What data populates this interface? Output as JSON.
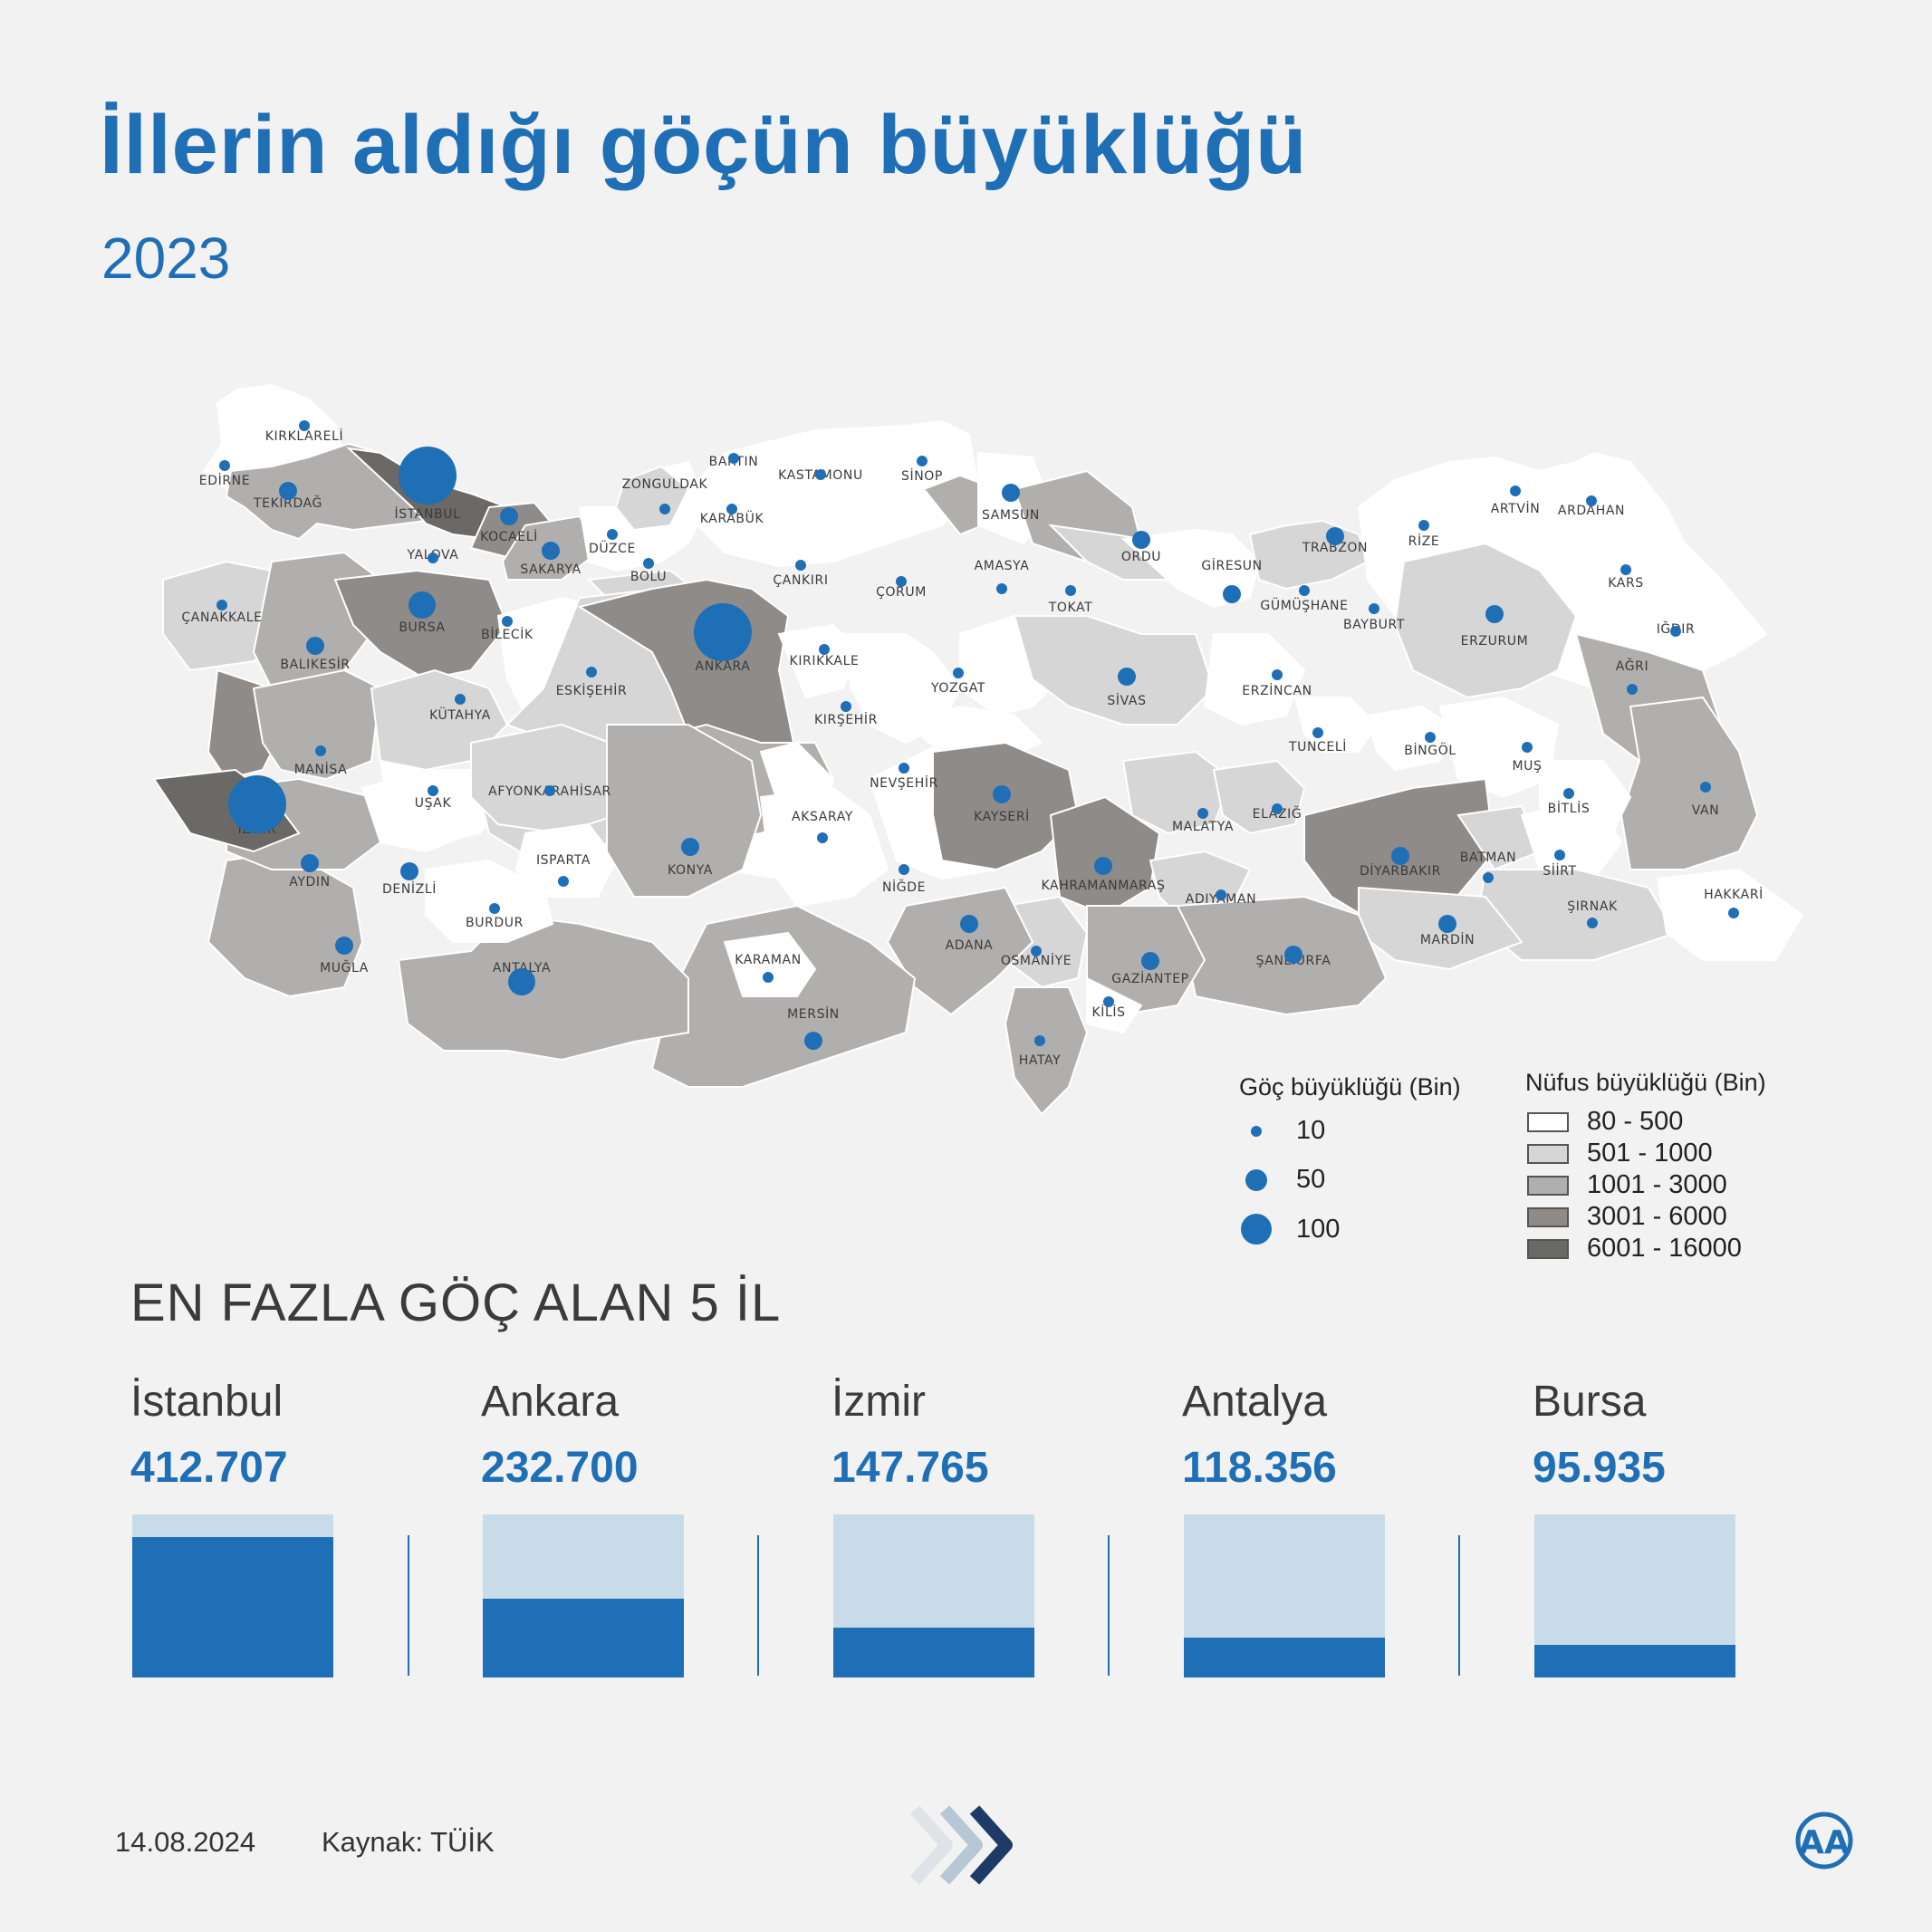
{
  "header": {
    "title": "İllerin aldığı göçün büyüklüğü",
    "subtitle": "2023"
  },
  "map": {
    "provinces": [
      {
        "name": "KIRKLARELİ",
        "shade": "1"
      },
      {
        "name": "EDİRNE",
        "shade": "1"
      },
      {
        "name": "TEKİRDAĞ",
        "shade": "3"
      },
      {
        "name": "İSTANBUL",
        "shade": "5"
      },
      {
        "name": "KOCAELİ",
        "shade": "4"
      },
      {
        "name": "YALOVA",
        "shade": "1"
      },
      {
        "name": "SAKARYA",
        "shade": "3"
      },
      {
        "name": "ÇANAKKALE",
        "shade": "2"
      },
      {
        "name": "BALIKESİR",
        "shade": "3"
      },
      {
        "name": "BURSA",
        "shade": "4"
      },
      {
        "name": "BİLECİK",
        "shade": "1"
      },
      {
        "name": "DÜZCE",
        "shade": "1"
      },
      {
        "name": "BOLU",
        "shade": "1"
      },
      {
        "name": "ZONGULDAK",
        "shade": "2"
      },
      {
        "name": "BARTIN",
        "shade": "1"
      },
      {
        "name": "KARABÜK",
        "shade": "1"
      },
      {
        "name": "KASTAMONU",
        "shade": "1"
      },
      {
        "name": "SİNOP",
        "shade": "1"
      },
      {
        "name": "SAMSUN",
        "shade": "3"
      },
      {
        "name": "ÇANKIRI",
        "shade": "1"
      },
      {
        "name": "ÇORUM",
        "shade": "2"
      },
      {
        "name": "AMASYA",
        "shade": "1"
      },
      {
        "name": "TOKAT",
        "shade": "2"
      },
      {
        "name": "ORDU",
        "shade": "2"
      },
      {
        "name": "GİRESUN",
        "shade": "1"
      },
      {
        "name": "TRABZON",
        "shade": "2"
      },
      {
        "name": "RİZE",
        "shade": "1"
      },
      {
        "name": "ARTVİN",
        "shade": "1"
      },
      {
        "name": "ARDAHAN",
        "shade": "1"
      },
      {
        "name": "GÜMÜŞHANE",
        "shade": "1"
      },
      {
        "name": "BAYBURT",
        "shade": "1"
      },
      {
        "name": "ERZURUM",
        "shade": "2"
      },
      {
        "name": "KARS",
        "shade": "1"
      },
      {
        "name": "IĞDIR",
        "shade": "1"
      },
      {
        "name": "AĞRI",
        "shade": "2"
      },
      {
        "name": "ESKİŞEHİR",
        "shade": "2"
      },
      {
        "name": "ANKARA",
        "shade": "4"
      },
      {
        "name": "KIRIKKALE",
        "shade": "1"
      },
      {
        "name": "YOZGAT",
        "shade": "1"
      },
      {
        "name": "SİVAS",
        "shade": "2"
      },
      {
        "name": "ERZİNCAN",
        "shade": "1"
      },
      {
        "name": "TUNCELİ",
        "shade": "1"
      },
      {
        "name": "BİNGÖL",
        "shade": "1"
      },
      {
        "name": "MUŞ",
        "shade": "1"
      },
      {
        "name": "VAN",
        "shade": "3"
      },
      {
        "name": "BİTLİS",
        "shade": "1"
      },
      {
        "name": "KÜTAHYA",
        "shade": "2"
      },
      {
        "name": "MANİSA",
        "shade": "3"
      },
      {
        "name": "İZMİR",
        "shade": "4"
      },
      {
        "name": "UŞAK",
        "shade": "1"
      },
      {
        "name": "AFYONKARAHİSAR",
        "shade": "2"
      },
      {
        "name": "KIRŞEHİR",
        "shade": "1"
      },
      {
        "name": "NEVŞEHİR",
        "shade": "1"
      },
      {
        "name": "KAYSERİ",
        "shade": "3"
      },
      {
        "name": "MALATYA",
        "shade": "2"
      },
      {
        "name": "ELAZIĞ",
        "shade": "2"
      },
      {
        "name": "DİYARBAKIR",
        "shade": "3"
      },
      {
        "name": "BATMAN",
        "shade": "2"
      },
      {
        "name": "SİİRT",
        "shade": "1"
      },
      {
        "name": "ŞIRNAK",
        "shade": "2"
      },
      {
        "name": "HAKKARİ",
        "shade": "1"
      },
      {
        "name": "AYDIN",
        "shade": "3"
      },
      {
        "name": "DENİZLİ",
        "shade": "3"
      },
      {
        "name": "MUĞLA",
        "shade": "3"
      },
      {
        "name": "ISPARTA",
        "shade": "1"
      },
      {
        "name": "BURDUR",
        "shade": "1"
      },
      {
        "name": "ANTALYA",
        "shade": "3"
      },
      {
        "name": "KONYA",
        "shade": "3"
      },
      {
        "name": "AKSARAY",
        "shade": "1"
      },
      {
        "name": "NİĞDE",
        "shade": "1"
      },
      {
        "name": "KARAMAN",
        "shade": "1"
      },
      {
        "name": "MERSİN",
        "shade": "3"
      },
      {
        "name": "ADANA",
        "shade": "3"
      },
      {
        "name": "OSMANİYE",
        "shade": "2"
      },
      {
        "name": "KAHRAMANMARAŞ",
        "shade": "3"
      },
      {
        "name": "ADIYAMAN",
        "shade": "2"
      },
      {
        "name": "GAZİANTEP",
        "shade": "3"
      },
      {
        "name": "KİLİS",
        "shade": "1"
      },
      {
        "name": "HATAY",
        "shade": "3"
      },
      {
        "name": "ŞANLIURFA",
        "shade": "3"
      },
      {
        "name": "MARDİN",
        "shade": "2"
      }
    ]
  },
  "legend_migration": {
    "title": "Göç büyüklüğü (Bin)",
    "items": [
      {
        "label": "10",
        "value": 10
      },
      {
        "label": "50",
        "value": 50
      },
      {
        "label": "100",
        "value": 100
      }
    ]
  },
  "legend_population": {
    "title": "Nüfus büyüklüğü (Bin)",
    "items": [
      {
        "label": "80 - 500",
        "color": "#ffffff"
      },
      {
        "label": "501 - 1000",
        "color": "#d7d6d6"
      },
      {
        "label": "1001 - 3000",
        "color": "#b1afad"
      },
      {
        "label": "3001 - 6000",
        "color": "#8e8b89"
      },
      {
        "label": "6001 - 16000",
        "color": "#6a6966"
      }
    ]
  },
  "top5": {
    "heading": "EN FAZLA GÖÇ ALAN 5 İL",
    "cities": [
      {
        "name": "İstanbul",
        "value": "412.707",
        "amount": 412707
      },
      {
        "name": "Ankara",
        "value": "232.700",
        "amount": 232700
      },
      {
        "name": "İzmir",
        "value": "147.765",
        "amount": 147765
      },
      {
        "name": "Antalya",
        "value": "118.356",
        "amount": 118356
      },
      {
        "name": "Bursa",
        "value": "95.935",
        "amount": 95935
      }
    ]
  },
  "footer": {
    "date": "14.08.2024",
    "source": "Kaynak: TÜİK",
    "logo_text": "AA"
  },
  "colors": {
    "accent": "#1f6fb6",
    "bar_track": "#c8dbe8",
    "background": "#f2f2f2"
  }
}
